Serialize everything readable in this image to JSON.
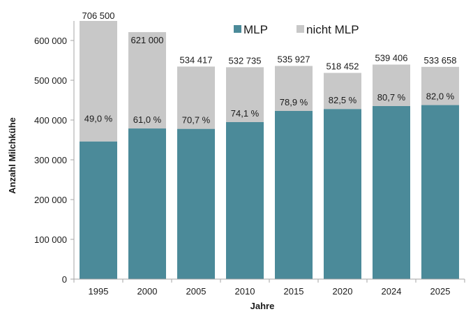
{
  "chart_data": {
    "type": "bar",
    "stacked": true,
    "title": "",
    "xlabel": "Jahre",
    "ylabel": "Anzahl Milchkühe",
    "ylim": [
      0,
      650000
    ],
    "yticks": [
      0,
      100000,
      200000,
      300000,
      400000,
      500000,
      600000
    ],
    "ytick_labels": [
      "0",
      "100 000",
      "200 000",
      "300 000",
      "400 000",
      "500 000",
      "600 000"
    ],
    "grid": false,
    "legend_position": "top-right",
    "categories": [
      "1995",
      "2000",
      "2005",
      "2010",
      "2015",
      "2020",
      "2024",
      "2025"
    ],
    "series": [
      {
        "name": "MLP",
        "color": "#4b8a99",
        "values": [
          346185,
          378810,
          377833,
          394757,
          422846,
          427723,
          435301,
          437600
        ]
      },
      {
        "name": "nicht MLP",
        "color": "#c8c8c8",
        "values": [
          360315,
          242190,
          156584,
          137978,
          113081,
          90729,
          104105,
          96058
        ]
      }
    ],
    "totals": [
      706500,
      621000,
      534417,
      532735,
      535927,
      518452,
      539406,
      533658
    ],
    "total_labels": [
      "706 500",
      "621 000",
      "534 417",
      "532 735",
      "535 927",
      "518 452",
      "539 406",
      "533 658"
    ],
    "share_labels": [
      "49,0 %",
      "61,0 %",
      "70,7 %",
      "74,1 %",
      "78,9 %",
      "82,5 %",
      "80,7 %",
      "82,0 %"
    ]
  }
}
